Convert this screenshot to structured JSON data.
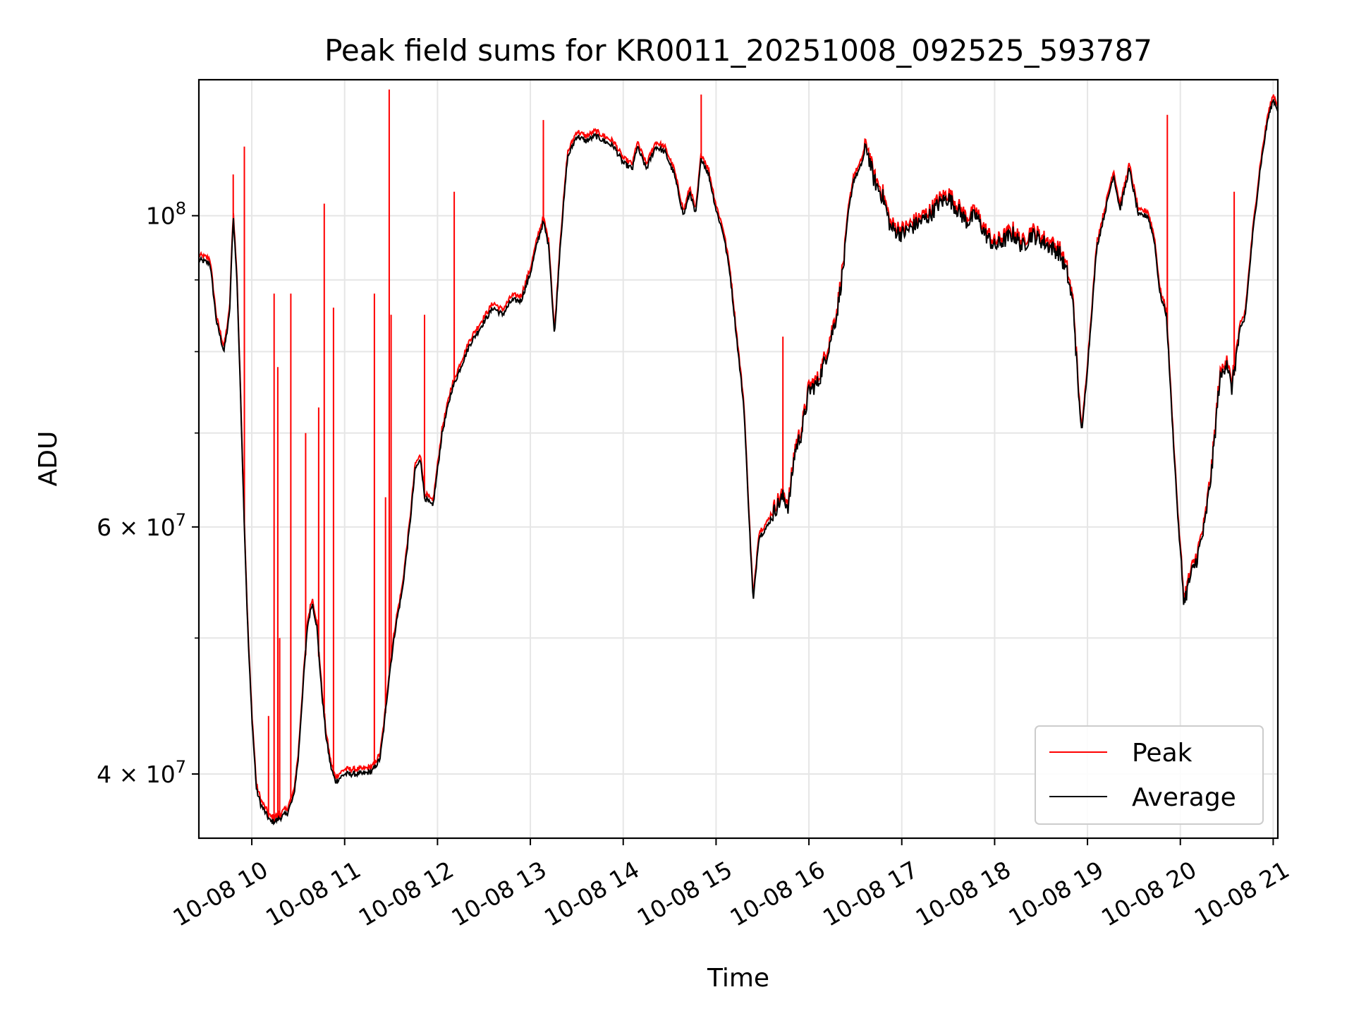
{
  "chart_data": {
    "type": "line",
    "title": "Peak field sums for KR0011_20251008_092525_593787",
    "xlabel": "Time",
    "ylabel": "ADU",
    "yscale": "log",
    "xlim": [
      9.43,
      21.05
    ],
    "ylim": [
      36000000,
      125000000
    ],
    "grid": true,
    "legend_position": "lower right",
    "x_ticks": [
      {
        "value": 10,
        "label": "10-08 10"
      },
      {
        "value": 11,
        "label": "10-08 11"
      },
      {
        "value": 12,
        "label": "10-08 12"
      },
      {
        "value": 13,
        "label": "10-08 13"
      },
      {
        "value": 14,
        "label": "10-08 14"
      },
      {
        "value": 15,
        "label": "10-08 15"
      },
      {
        "value": 16,
        "label": "10-08 16"
      },
      {
        "value": 17,
        "label": "10-08 17"
      },
      {
        "value": 18,
        "label": "10-08 18"
      },
      {
        "value": 19,
        "label": "10-08 19"
      },
      {
        "value": 20,
        "label": "10-08 20"
      },
      {
        "value": 21,
        "label": "10-08 21"
      }
    ],
    "y_ticks": [
      {
        "value": 100000000,
        "label": "10",
        "exponent": "8"
      },
      {
        "value": 60000000,
        "label": "6 × 10",
        "exponent": "7"
      },
      {
        "value": 40000000,
        "label": "4 × 10",
        "exponent": "7"
      }
    ],
    "y_minor_ticks": [
      50000000,
      70000000,
      80000000,
      90000000
    ],
    "series": [
      {
        "name": "Average",
        "color": "#000000",
        "points": [
          [
            9.43,
            93000000
          ],
          [
            9.55,
            92500000
          ],
          [
            9.62,
            84000000
          ],
          [
            9.7,
            80000000
          ],
          [
            9.76,
            85000000
          ],
          [
            9.8,
            100000000
          ],
          [
            9.84,
            90000000
          ],
          [
            9.88,
            74000000
          ],
          [
            9.92,
            60000000
          ],
          [
            9.96,
            50000000
          ],
          [
            10.0,
            44000000
          ],
          [
            10.05,
            39000000
          ],
          [
            10.1,
            38000000
          ],
          [
            10.15,
            37500000
          ],
          [
            10.2,
            37000000
          ],
          [
            10.25,
            37000000
          ],
          [
            10.3,
            37200000
          ],
          [
            10.38,
            37500000
          ],
          [
            10.45,
            38500000
          ],
          [
            10.5,
            41000000
          ],
          [
            10.55,
            46000000
          ],
          [
            10.6,
            51000000
          ],
          [
            10.65,
            53000000
          ],
          [
            10.7,
            51000000
          ],
          [
            10.75,
            46000000
          ],
          [
            10.8,
            42500000
          ],
          [
            10.85,
            40500000
          ],
          [
            10.9,
            39500000
          ],
          [
            11.0,
            40000000
          ],
          [
            11.1,
            40000000
          ],
          [
            11.2,
            40000000
          ],
          [
            11.3,
            40200000
          ],
          [
            11.38,
            41000000
          ],
          [
            11.42,
            43000000
          ],
          [
            11.48,
            47000000
          ],
          [
            11.55,
            51000000
          ],
          [
            11.62,
            54000000
          ],
          [
            11.7,
            60000000
          ],
          [
            11.76,
            66000000
          ],
          [
            11.82,
            67000000
          ],
          [
            11.86,
            63000000
          ],
          [
            11.95,
            62000000
          ],
          [
            12.05,
            70000000
          ],
          [
            12.15,
            75000000
          ],
          [
            12.25,
            78000000
          ],
          [
            12.35,
            81000000
          ],
          [
            12.5,
            84000000
          ],
          [
            12.6,
            86000000
          ],
          [
            12.7,
            85000000
          ],
          [
            12.8,
            87000000
          ],
          [
            12.9,
            87000000
          ],
          [
            13.0,
            91000000
          ],
          [
            13.08,
            96000000
          ],
          [
            13.14,
            99000000
          ],
          [
            13.2,
            95000000
          ],
          [
            13.26,
            82000000
          ],
          [
            13.32,
            95000000
          ],
          [
            13.4,
            110000000
          ],
          [
            13.5,
            114000000
          ],
          [
            13.6,
            113000000
          ],
          [
            13.7,
            114000000
          ],
          [
            13.8,
            113000000
          ],
          [
            13.9,
            112000000
          ],
          [
            14.0,
            109000000
          ],
          [
            14.1,
            108000000
          ],
          [
            14.15,
            112000000
          ],
          [
            14.25,
            108000000
          ],
          [
            14.35,
            112000000
          ],
          [
            14.45,
            111000000
          ],
          [
            14.55,
            107000000
          ],
          [
            14.65,
            100000000
          ],
          [
            14.72,
            104000000
          ],
          [
            14.78,
            100000000
          ],
          [
            14.84,
            110000000
          ],
          [
            14.92,
            107000000
          ],
          [
            15.0,
            101000000
          ],
          [
            15.08,
            97000000
          ],
          [
            15.15,
            91000000
          ],
          [
            15.22,
            82000000
          ],
          [
            15.3,
            73000000
          ],
          [
            15.36,
            60000000
          ],
          [
            15.4,
            53000000
          ],
          [
            15.46,
            59000000
          ],
          [
            15.55,
            60000000
          ],
          [
            15.65,
            62000000
          ],
          [
            15.72,
            63000000
          ],
          [
            15.78,
            62000000
          ],
          [
            15.85,
            68000000
          ],
          [
            15.92,
            70000000
          ],
          [
            16.0,
            75000000
          ],
          [
            16.1,
            76000000
          ],
          [
            16.2,
            80000000
          ],
          [
            16.3,
            85000000
          ],
          [
            16.38,
            93000000
          ],
          [
            16.42,
            100000000
          ],
          [
            16.48,
            106000000
          ],
          [
            16.55,
            108000000
          ],
          [
            16.62,
            112000000
          ],
          [
            16.7,
            106000000
          ],
          [
            16.8,
            103000000
          ],
          [
            16.88,
            98000000
          ],
          [
            17.0,
            97000000
          ],
          [
            17.1,
            98000000
          ],
          [
            17.2,
            99000000
          ],
          [
            17.3,
            100000000
          ],
          [
            17.4,
            102000000
          ],
          [
            17.5,
            103000000
          ],
          [
            17.6,
            101000000
          ],
          [
            17.7,
            99000000
          ],
          [
            17.8,
            100000000
          ],
          [
            17.9,
            97000000
          ],
          [
            18.0,
            95000000
          ],
          [
            18.1,
            96000000
          ],
          [
            18.2,
            97000000
          ],
          [
            18.3,
            95000000
          ],
          [
            18.4,
            97000000
          ],
          [
            18.5,
            96000000
          ],
          [
            18.6,
            95000000
          ],
          [
            18.7,
            94000000
          ],
          [
            18.78,
            91000000
          ],
          [
            18.85,
            86000000
          ],
          [
            18.9,
            75000000
          ],
          [
            18.94,
            70000000
          ],
          [
            19.0,
            78000000
          ],
          [
            19.05,
            86000000
          ],
          [
            19.1,
            95000000
          ],
          [
            19.18,
            100000000
          ],
          [
            19.28,
            107000000
          ],
          [
            19.35,
            101000000
          ],
          [
            19.45,
            108000000
          ],
          [
            19.55,
            100000000
          ],
          [
            19.65,
            100000000
          ],
          [
            19.72,
            96000000
          ],
          [
            19.78,
            88000000
          ],
          [
            19.85,
            85000000
          ],
          [
            19.92,
            70000000
          ],
          [
            19.98,
            60000000
          ],
          [
            20.04,
            53000000
          ],
          [
            20.1,
            55000000
          ],
          [
            20.18,
            57000000
          ],
          [
            20.26,
            60000000
          ],
          [
            20.34,
            66000000
          ],
          [
            20.42,
            76000000
          ],
          [
            20.5,
            79000000
          ],
          [
            20.55,
            75000000
          ],
          [
            20.62,
            81000000
          ],
          [
            20.7,
            85000000
          ],
          [
            20.78,
            97000000
          ],
          [
            20.86,
            108000000
          ],
          [
            20.94,
            117000000
          ],
          [
            21.0,
            121000000
          ],
          [
            21.05,
            119000000
          ]
        ]
      },
      {
        "name": "Peak",
        "color": "#ff0000",
        "spikes": [
          [
            9.8,
            107000000
          ],
          [
            9.92,
            112000000
          ],
          [
            10.18,
            44000000
          ],
          [
            10.24,
            88000000
          ],
          [
            10.28,
            78000000
          ],
          [
            10.3,
            50000000
          ],
          [
            10.42,
            88000000
          ],
          [
            10.58,
            70000000
          ],
          [
            10.72,
            73000000
          ],
          [
            10.78,
            102000000
          ],
          [
            10.88,
            86000000
          ],
          [
            11.32,
            88000000
          ],
          [
            11.44,
            63000000
          ],
          [
            11.48,
            123000000
          ],
          [
            11.5,
            85000000
          ],
          [
            11.86,
            85000000
          ],
          [
            12.18,
            104000000
          ],
          [
            13.14,
            117000000
          ],
          [
            14.84,
            122000000
          ],
          [
            15.72,
            82000000
          ],
          [
            19.86,
            118000000
          ],
          [
            20.58,
            104000000
          ]
        ]
      }
    ],
    "legend": [
      {
        "label": "Peak",
        "color": "#ff0000"
      },
      {
        "label": "Average",
        "color": "#000000"
      }
    ]
  }
}
